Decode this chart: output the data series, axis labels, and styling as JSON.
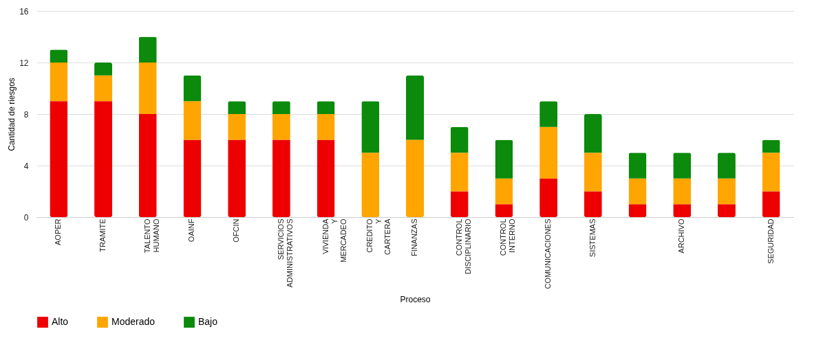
{
  "chart_data": {
    "type": "bar",
    "stacked": true,
    "xlabel": "Proceso",
    "ylabel": "Cantidad de riesgos",
    "categories": [
      "AOPER",
      "TRAMITE",
      "TALENTO HUMANO",
      "OAINF",
      "OFCIN",
      "SERVICIOS ADMINISTRATIVOS",
      "VIVIENDA Y MERCADEO",
      "CREDITO Y CARTERA",
      "FINANZAS",
      "CONTROL DISCIPLINARIO",
      "CONTROL INTERNO",
      "COMUNICACIONES",
      "SISTEMAS",
      null,
      "ARCHIVO",
      null,
      "SEGURIDAD"
    ],
    "series": [
      {
        "name": "Alto",
        "color": "#ee0000",
        "values": [
          9,
          9,
          8,
          6,
          6,
          6,
          6,
          0,
          0,
          2,
          1,
          3,
          2,
          1,
          1,
          1,
          2
        ]
      },
      {
        "name": "Moderado",
        "color": "#ffa500",
        "values": [
          3,
          2,
          4,
          3,
          2,
          2,
          2,
          5,
          6,
          3,
          2,
          4,
          3,
          2,
          2,
          2,
          3
        ]
      },
      {
        "name": "Bajo",
        "color": "#0b8a0b",
        "values": [
          1,
          1,
          2,
          2,
          1,
          1,
          1,
          4,
          5,
          2,
          3,
          2,
          3,
          2,
          2,
          2,
          1
        ]
      }
    ],
    "ylim": [
      0,
      16
    ],
    "yticks": [
      0,
      4,
      8,
      12,
      16
    ],
    "grid": "y",
    "legend": "bottom"
  }
}
